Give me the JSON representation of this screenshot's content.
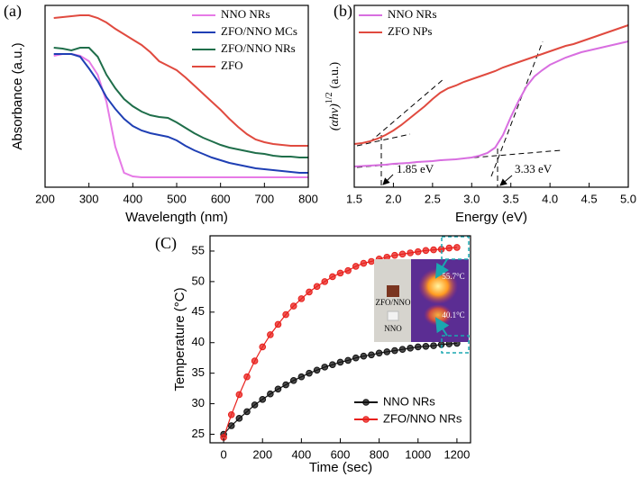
{
  "chart_data": [
    {
      "type": "line",
      "panel_label": "(a)",
      "x_label": "Wavelength (nm)",
      "y_label": "Absorbance (a.u.)",
      "x": [
        220,
        240,
        260,
        280,
        300,
        320,
        340,
        360,
        380,
        400,
        420,
        440,
        460,
        480,
        500,
        520,
        540,
        560,
        580,
        600,
        620,
        640,
        660,
        680,
        700,
        720,
        740,
        760,
        780,
        800
      ],
      "xlim": [
        200,
        800
      ],
      "xticks": [
        200,
        300,
        400,
        500,
        600,
        700,
        800
      ],
      "ylim": [
        0,
        202
      ],
      "legend": "upper right",
      "series": [
        {
          "name": "NNO NRs",
          "color": "#e67ae6",
          "values": [
            146,
            148,
            148,
            146,
            140,
            125,
            95,
            45,
            16,
            12,
            11,
            11,
            11,
            11,
            11,
            11,
            11,
            11,
            11,
            11,
            11,
            11,
            11,
            11,
            11,
            11,
            11,
            11,
            11,
            11
          ]
        },
        {
          "name": "ZFO/NNO MCs",
          "color": "#1f3fb4",
          "values": [
            148,
            148,
            148,
            145,
            132,
            118,
            100,
            87,
            76,
            68,
            63,
            60,
            58,
            56,
            52,
            46,
            41,
            37,
            33,
            30,
            27,
            25,
            23,
            21,
            20,
            19,
            18,
            17,
            16,
            16
          ]
        },
        {
          "name": "ZFO/NNO NRs",
          "color": "#1f6e4a",
          "values": [
            155,
            154,
            152,
            155,
            155,
            145,
            125,
            110,
            98,
            90,
            84,
            80,
            78,
            77,
            72,
            66,
            60,
            55,
            51,
            47,
            44,
            42,
            40,
            38,
            37,
            35,
            34,
            34,
            33,
            33
          ]
        },
        {
          "name": "ZFO",
          "color": "#e04a3f",
          "values": [
            188,
            189,
            190,
            191,
            191,
            188,
            183,
            176,
            170,
            164,
            158,
            150,
            140,
            135,
            130,
            122,
            113,
            104,
            95,
            86,
            76,
            67,
            59,
            53,
            50,
            48,
            47,
            46,
            46,
            46
          ]
        }
      ]
    },
    {
      "type": "line",
      "panel_label": "(b)",
      "x_label": "Energy (eV)",
      "y_label": "(αhν)",
      "y_label_sup": "1/2",
      "y_label_unit": "(a.u.)",
      "x": [
        1.5,
        1.6,
        1.7,
        1.8,
        1.9,
        2.0,
        2.1,
        2.2,
        2.3,
        2.4,
        2.5,
        2.6,
        2.7,
        2.8,
        2.9,
        3.0,
        3.1,
        3.2,
        3.3,
        3.4,
        3.5,
        3.6,
        3.7,
        3.8,
        3.9,
        4.0,
        4.1,
        4.2,
        4.3,
        4.4,
        4.5,
        4.6,
        4.7,
        4.8,
        4.9,
        5.0
      ],
      "xlim": [
        1.5,
        5.0
      ],
      "xticks": [
        1.5,
        {
          "value": 2,
          "label": "2.0"
        },
        2.5,
        {
          "value": 3,
          "label": "3.0"
        },
        3.5,
        {
          "value": 4,
          "label": "4.0"
        },
        4.5,
        {
          "value": 5,
          "label": "5.0"
        }
      ],
      "ylim": [
        0,
        202
      ],
      "legend": "upper left",
      "annotations": [
        "1.85 eV",
        "3.33 eV"
      ],
      "series": [
        {
          "name": "NNO NRs",
          "color": "#d86ee0",
          "values": [
            23,
            23.5,
            24,
            24.5,
            25,
            26,
            26.5,
            27,
            28,
            28.5,
            29,
            30,
            30.5,
            31,
            32,
            33,
            35,
            38,
            44,
            58,
            78,
            96,
            112,
            123,
            130,
            136,
            140,
            144,
            147,
            150,
            152,
            154,
            156,
            158,
            160,
            162
          ]
        },
        {
          "name": "ZFO NPs",
          "color": "#e04a3f",
          "values": [
            48,
            49,
            51,
            54,
            58,
            63,
            69,
            76,
            83,
            90,
            98,
            105,
            110,
            113,
            117,
            120,
            123,
            126,
            129,
            133,
            136,
            139,
            142,
            145,
            148,
            151,
            154,
            157,
            159,
            162,
            165,
            168,
            171,
            174,
            177,
            180
          ]
        }
      ]
    },
    {
      "type": "line",
      "panel_label": "(C)",
      "markers": true,
      "x_label": "Time (sec)",
      "y_label": "Temperature (°C)",
      "x": [
        0,
        40,
        80,
        120,
        160,
        200,
        240,
        280,
        320,
        360,
        400,
        440,
        480,
        520,
        560,
        600,
        640,
        680,
        720,
        760,
        800,
        840,
        880,
        920,
        960,
        1000,
        1040,
        1080,
        1120,
        1160,
        1200
      ],
      "xlim": [
        -70,
        1270
      ],
      "xticks": [
        0,
        200,
        400,
        600,
        800,
        1000,
        1200
      ],
      "ylim": [
        23.6,
        57.5
      ],
      "yticks": [
        25,
        30,
        35,
        40,
        45,
        50,
        55
      ],
      "legend": "lower right",
      "inset_labels": [
        "ZFO/NNO",
        "NNO",
        "55.7°C",
        "40.1°C"
      ],
      "series": [
        {
          "name": "NNO NRs",
          "color": "#111111",
          "values": [
            25.0,
            26.4,
            27.6,
            28.7,
            29.8,
            30.7,
            31.6,
            32.4,
            33.1,
            33.8,
            34.4,
            35.0,
            35.5,
            36.0,
            36.4,
            36.8,
            37.1,
            37.5,
            37.8,
            38.0,
            38.3,
            38.5,
            38.7,
            38.9,
            39.1,
            39.3,
            39.4,
            39.5,
            39.7,
            39.8,
            39.9
          ]
        },
        {
          "name": "ZFO/NNO NRs",
          "color": "#e8201c",
          "values": [
            24.5,
            28.2,
            31.5,
            34.4,
            37.0,
            39.3,
            41.3,
            43.0,
            44.6,
            46.0,
            47.2,
            48.3,
            49.2,
            50.0,
            50.8,
            51.4,
            51.8,
            52.5,
            53.0,
            53.3,
            53.7,
            54.0,
            54.3,
            54.5,
            54.7,
            54.9,
            55.1,
            55.2,
            55.3,
            55.5,
            55.6
          ]
        }
      ]
    }
  ]
}
